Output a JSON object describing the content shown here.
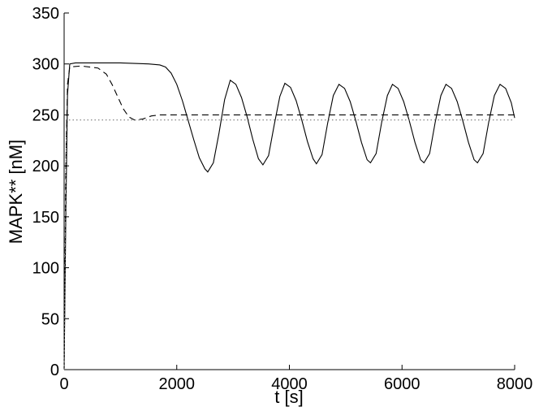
{
  "chart_data": {
    "type": "line",
    "xlabel": "t [s]",
    "ylabel": "MAPK** [nM]",
    "xlim": [
      0,
      8000
    ],
    "xticks": [
      0,
      2000,
      4000,
      6000,
      8000
    ],
    "ylim": [
      0,
      350
    ],
    "yticks": [
      0,
      50,
      100,
      150,
      200,
      250,
      300,
      350
    ],
    "grid": false,
    "series": [
      {
        "color": "#000000",
        "style": "solid",
        "x": [
          0,
          30,
          60,
          100,
          200,
          500,
          1000,
          1500,
          1700,
          1800,
          1900,
          2000,
          2100,
          2200,
          2300,
          2400,
          2500,
          2550,
          2650,
          2750,
          2850,
          2950,
          3050,
          3150,
          3250,
          3350,
          3450,
          3530,
          3630,
          3730,
          3830,
          3920,
          4020,
          4120,
          4220,
          4320,
          4420,
          4480,
          4580,
          4680,
          4780,
          4880,
          4980,
          5080,
          5180,
          5280,
          5380,
          5440,
          5540,
          5640,
          5740,
          5830,
          5930,
          6030,
          6130,
          6230,
          6330,
          6390,
          6490,
          6590,
          6690,
          6780,
          6880,
          6980,
          7080,
          7180,
          7280,
          7340,
          7440,
          7540,
          7640,
          7740,
          7840,
          7940,
          8000
        ],
        "values": [
          0,
          150,
          270,
          300,
          301,
          301,
          301,
          300,
          299,
          297,
          291,
          280,
          264,
          245,
          226,
          208,
          197,
          194,
          203,
          232,
          265,
          284,
          280,
          267,
          248,
          226,
          207,
          201,
          210,
          240,
          268,
          281,
          277,
          264,
          245,
          224,
          207,
          202,
          211,
          242,
          269,
          280,
          276,
          263,
          244,
          223,
          206,
          203,
          212,
          243,
          269,
          280,
          276,
          263,
          244,
          223,
          206,
          203,
          212,
          243,
          269,
          280,
          276,
          263,
          244,
          223,
          206,
          203,
          212,
          243,
          269,
          280,
          276,
          262,
          247
        ]
      },
      {
        "color": "#000000",
        "style": "dashed",
        "x": [
          0,
          30,
          60,
          100,
          300,
          600,
          750,
          850,
          950,
          1050,
          1150,
          1250,
          1400,
          1550,
          1700,
          8000
        ],
        "values": [
          0,
          200,
          280,
          297,
          298,
          296,
          290,
          280,
          268,
          256,
          248,
          245,
          246,
          249,
          250,
          250
        ]
      },
      {
        "color": "#777777",
        "style": "dotted",
        "x": [
          0,
          40,
          8000
        ],
        "values": [
          0,
          245,
          245
        ]
      }
    ]
  }
}
